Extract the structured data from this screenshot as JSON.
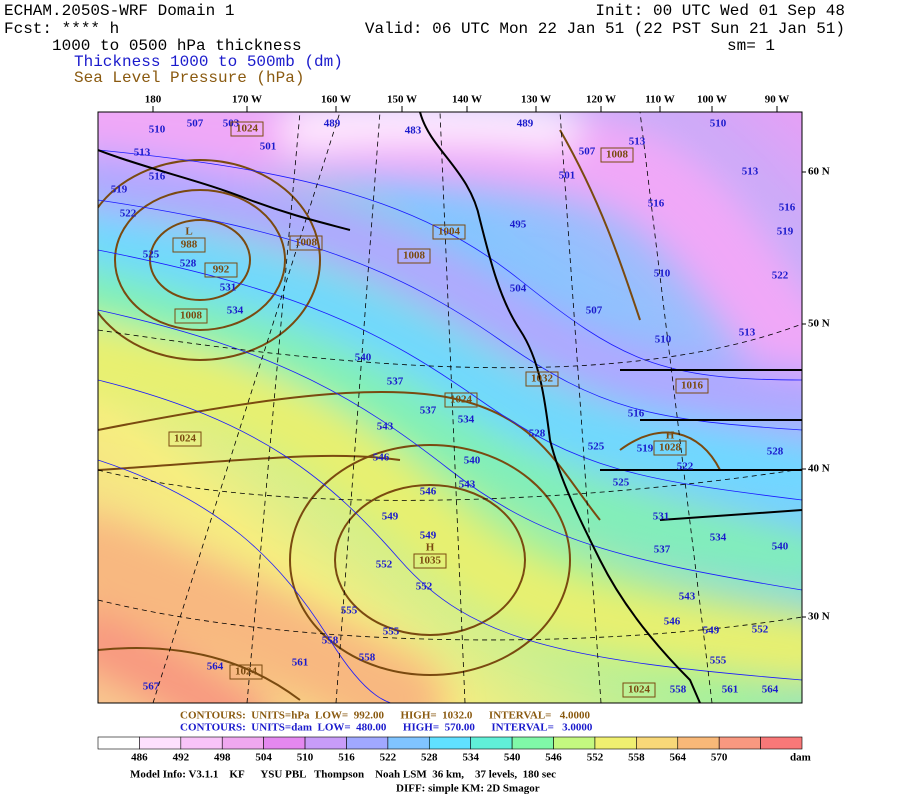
{
  "header": {
    "title": "ECHAM.2050S-WRF Domain 1",
    "forecast": "Fcst: **** h",
    "field": "1000 to 0500 hPa thickness",
    "thickness_title": "Thickness 1000 to 500mb (dm)",
    "pressure_title": "Sea Level Pressure (hPa)",
    "init": "Init: 00 UTC Wed 01 Sep 48",
    "valid": "Valid: 06 UTC Mon 22 Jan 51 (22 PST Sun 21 Jan 51)",
    "smoothing": "sm= 1"
  },
  "map": {
    "lon_labels": [
      "180",
      "170 W",
      "160 W",
      "150 W",
      "140 W",
      "130 W",
      "120 W",
      "110 W",
      "100 W",
      "90 W"
    ],
    "lat_labels": [
      "60 N",
      "50 N",
      "40 N",
      "30 N"
    ],
    "thickness_labels": [
      510,
      507,
      503,
      489,
      483,
      489,
      510,
      513,
      516,
      519,
      522,
      525,
      528,
      501,
      507,
      513,
      501,
      516,
      513,
      516,
      519,
      522,
      531,
      534,
      495,
      504,
      507,
      510,
      510,
      513,
      540,
      537,
      537,
      534,
      543,
      528,
      525,
      516,
      519,
      522,
      528,
      546,
      540,
      543,
      546,
      525,
      531,
      549,
      549,
      552,
      552,
      537,
      534,
      540,
      543,
      555,
      555,
      558,
      558,
      561,
      564,
      567,
      546,
      549,
      552,
      555,
      558,
      561,
      564
    ],
    "pressure_labels": [
      1024,
      1008,
      988,
      992,
      1008,
      1008,
      1008,
      1004,
      1024,
      1024,
      1032,
      1016,
      1028,
      1035,
      1024,
      1024
    ],
    "center_letters": [
      "L",
      "H",
      "H"
    ]
  },
  "legend": {
    "contour_lines": [
      "CONTOURS:  UNITS=hPa  LOW=  992.00      HIGH=  1032.0      INTERVAL=   4.0000",
      "CONTOURS:  UNITS=dam  LOW=  480.00      HIGH=  570.00      INTERVAL=   3.0000"
    ],
    "colorbar": {
      "labels": [
        486,
        492,
        498,
        504,
        510,
        516,
        522,
        528,
        534,
        540,
        546,
        552,
        558,
        564,
        570
      ],
      "colors": [
        "#ffffff",
        "#fde0fd",
        "#f8c4f8",
        "#f0a8f0",
        "#e488f0",
        "#c89cf8",
        "#a0a8ff",
        "#80c4ff",
        "#60e0ff",
        "#60f0d8",
        "#80f8a8",
        "#c4f880",
        "#f0f070",
        "#f8d878",
        "#f8b878",
        "#f89880",
        "#f87878"
      ],
      "unit": "dam"
    }
  },
  "footer": {
    "model_info": "Model Info: V3.1.1    KF      YSU PBL   Thompson    Noah LSM  36 km,    37 levels,  180 sec",
    "diff": "DIFF: simple KM: 2D Smagor"
  }
}
